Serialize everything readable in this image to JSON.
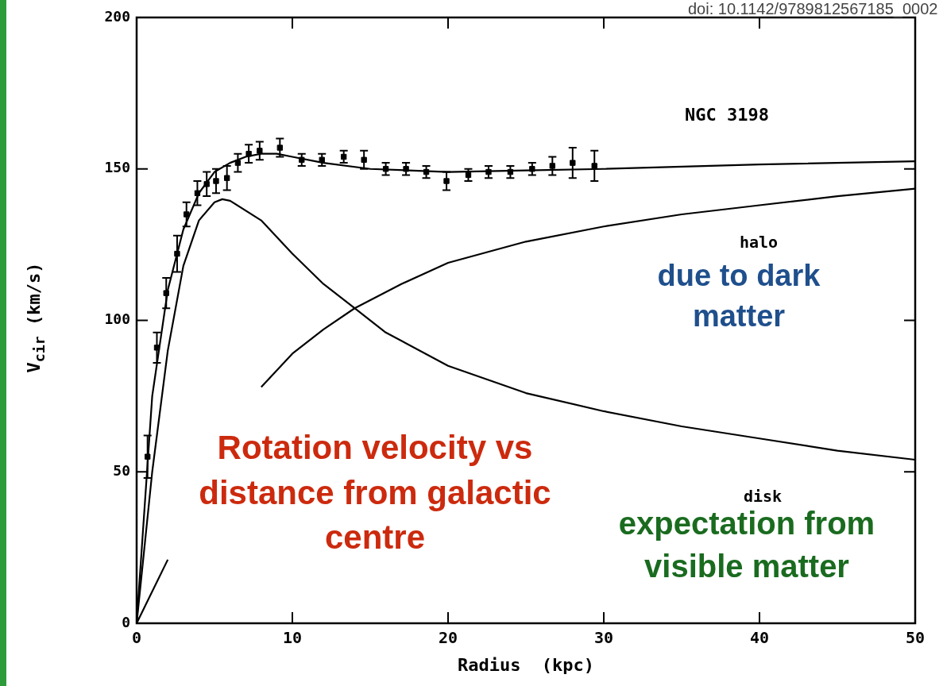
{
  "chart_data": {
    "type": "line",
    "xlabel": "Radius  (kpc)",
    "ylabel": "V$_{cir}$  (km/s)",
    "xlim": [
      0,
      50
    ],
    "xticks": [
      0,
      10,
      20,
      30,
      40,
      50
    ],
    "ylim": [
      0,
      200
    ],
    "yticks": [
      0,
      50,
      100,
      150,
      200
    ],
    "grid": false,
    "legend": false,
    "line_style": "solid",
    "annotations": [
      "doi: 10.1142/9789812567185_0002",
      "NGC 3198",
      "due to dark matter",
      "Rotation velocity vs distance from galactic centre",
      "expectation from visible matter",
      "halo",
      "disk"
    ],
    "series": [
      {
        "type": "scatter",
        "marker": "square",
        "color": "#000000",
        "x": [
          0.7,
          1.3,
          1.9,
          2.6,
          3.2,
          3.9,
          4.5,
          5.1,
          5.8,
          6.5,
          7.2,
          7.9,
          9.2,
          10.6,
          11.9,
          13.3,
          14.6,
          16.0,
          17.3,
          18.6,
          19.9,
          21.3,
          22.6,
          24.0,
          25.4,
          26.7,
          28.0,
          29.4
        ],
        "values": [
          55,
          91,
          109,
          122,
          135,
          142,
          145,
          146,
          147,
          152,
          155,
          156,
          157,
          153,
          153,
          154,
          153,
          150,
          150,
          149,
          146,
          148,
          149,
          149,
          150,
          151,
          152,
          151
        ],
        "errors": [
          7,
          5,
          5,
          6,
          4,
          4,
          4,
          4,
          4,
          3,
          3,
          3,
          3,
          2,
          2,
          2,
          3,
          2,
          2,
          2,
          3,
          2,
          2,
          2,
          2,
          3,
          5,
          5
        ]
      },
      {
        "color": "#000000",
        "x": [
          0,
          1,
          2,
          3,
          4,
          5,
          6,
          7,
          8,
          9,
          10,
          12,
          15,
          20,
          25,
          30,
          40,
          50
        ],
        "values": [
          0,
          75,
          110,
          130,
          142,
          149,
          152,
          154,
          155,
          155,
          154,
          152,
          150,
          149,
          149.5,
          150,
          151.5,
          152.5
        ]
      },
      {
        "color": "#000000",
        "x": [
          0,
          1,
          2,
          3,
          4,
          5,
          5.5,
          6,
          8,
          10,
          12,
          14,
          16,
          20,
          25,
          30,
          35,
          40,
          45,
          50
        ],
        "values": [
          0,
          50,
          90,
          118,
          133,
          139,
          140,
          139.5,
          133,
          122,
          112,
          104,
          96,
          85,
          76,
          70,
          65,
          61,
          57,
          54
        ]
      },
      {
        "color": "#000000",
        "x": [
          0,
          2,
          4,
          6,
          8,
          10,
          12,
          14,
          17,
          20,
          25,
          30,
          35,
          40,
          45,
          50
        ],
        "values": [
          0,
          21,
          null,
          null,
          78,
          89,
          97,
          104,
          112,
          119,
          126,
          131,
          135,
          138,
          141,
          143.5
        ]
      }
    ]
  }
}
